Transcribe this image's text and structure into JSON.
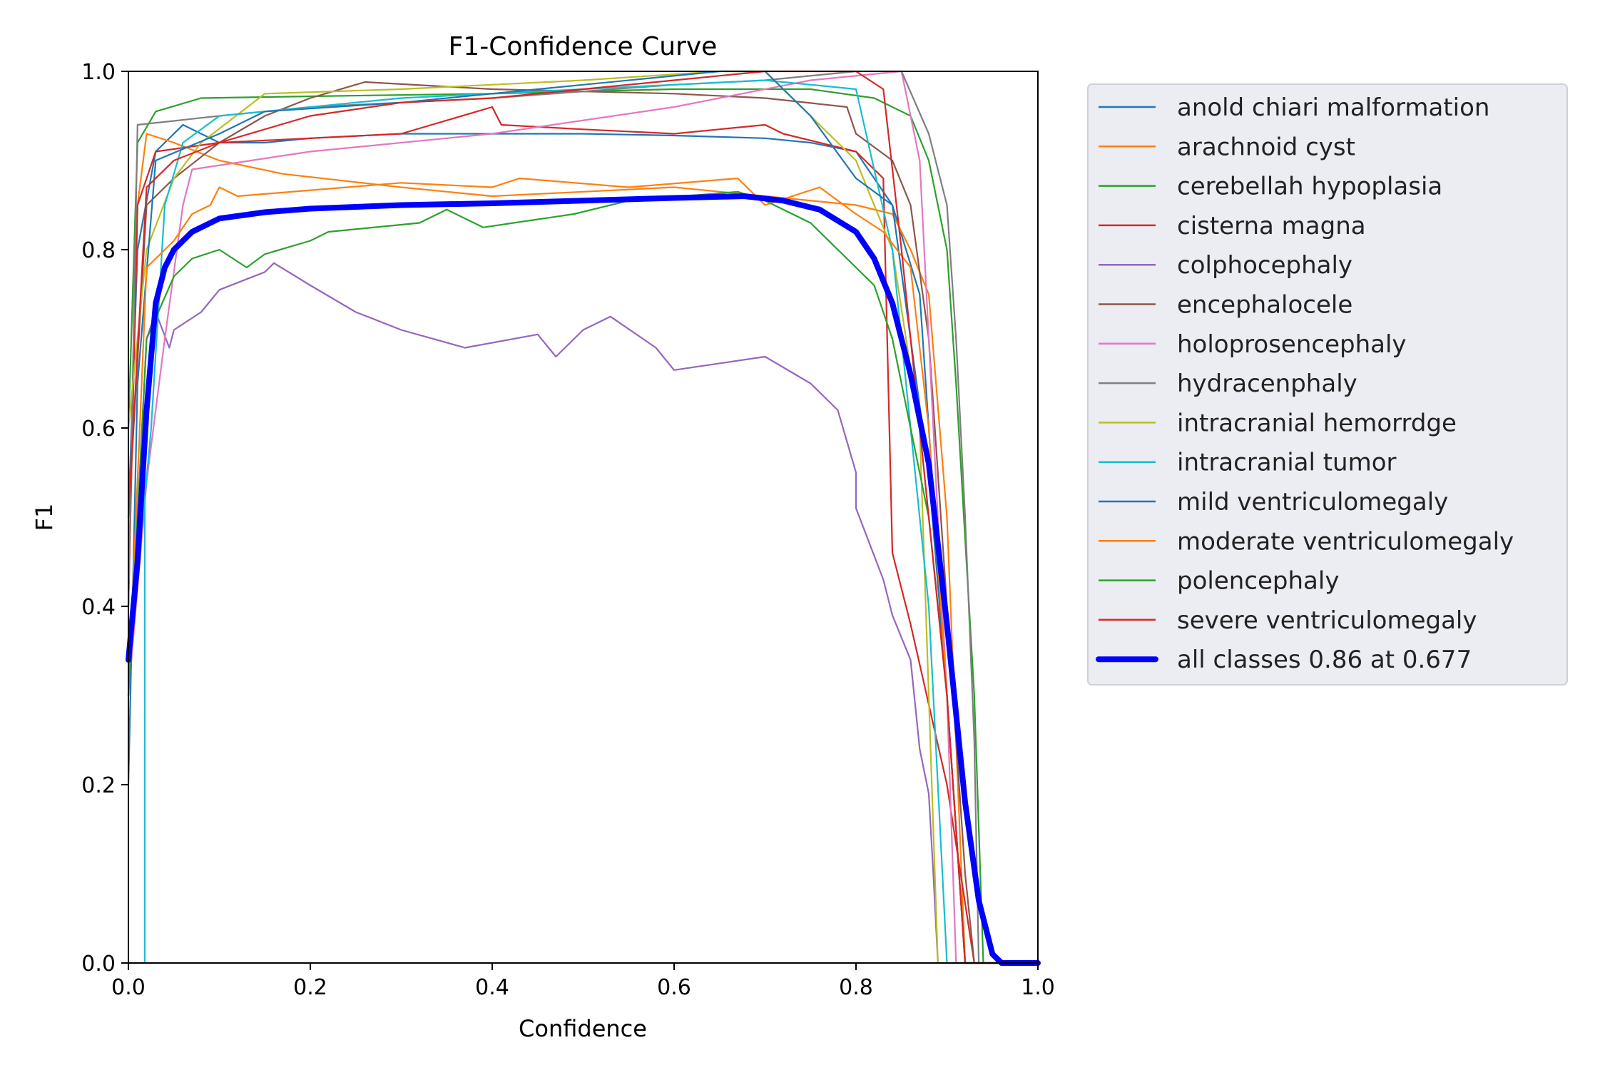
{
  "chart_data": {
    "type": "line",
    "title": "F1-Confidence Curve",
    "xlabel": "Confidence",
    "ylabel": "F1",
    "xlim": [
      0,
      1
    ],
    "ylim": [
      0,
      1
    ],
    "xticks": [
      "0.0",
      "0.2",
      "0.4",
      "0.6",
      "0.8",
      "1.0"
    ],
    "yticks": [
      "0.0",
      "0.2",
      "0.4",
      "0.6",
      "0.8",
      "1.0"
    ],
    "grid": false,
    "legend_position": "outside-right",
    "series": [
      {
        "name": "anold chiari malformation",
        "color": "#1f77b4",
        "width": 1,
        "points": [
          [
            0,
            0.5
          ],
          [
            0.01,
            0.8
          ],
          [
            0.03,
            0.91
          ],
          [
            0.06,
            0.94
          ],
          [
            0.08,
            0.93
          ],
          [
            0.1,
            0.92
          ],
          [
            0.15,
            0.92
          ],
          [
            0.2,
            0.925
          ],
          [
            0.3,
            0.93
          ],
          [
            0.4,
            0.93
          ],
          [
            0.5,
            0.93
          ],
          [
            0.6,
            0.928
          ],
          [
            0.7,
            0.925
          ],
          [
            0.75,
            0.92
          ],
          [
            0.8,
            0.91
          ],
          [
            0.84,
            0.85
          ],
          [
            0.87,
            0.75
          ],
          [
            0.9,
            0.3
          ],
          [
            0.92,
            0
          ],
          [
            1,
            0
          ]
        ]
      },
      {
        "name": "arachnoid cyst",
        "color": "#ff7f0e",
        "width": 1,
        "points": [
          [
            0,
            0.4
          ],
          [
            0.01,
            0.85
          ],
          [
            0.02,
            0.93
          ],
          [
            0.05,
            0.92
          ],
          [
            0.1,
            0.9
          ],
          [
            0.17,
            0.885
          ],
          [
            0.3,
            0.87
          ],
          [
            0.4,
            0.86
          ],
          [
            0.5,
            0.865
          ],
          [
            0.6,
            0.87
          ],
          [
            0.7,
            0.86
          ],
          [
            0.8,
            0.85
          ],
          [
            0.84,
            0.84
          ],
          [
            0.86,
            0.8
          ],
          [
            0.88,
            0.75
          ],
          [
            0.9,
            0.5
          ],
          [
            0.92,
            0
          ],
          [
            1,
            0
          ]
        ]
      },
      {
        "name": "cerebellah hypoplasia",
        "color": "#2ca02c",
        "width": 1,
        "points": [
          [
            0,
            0.6
          ],
          [
            0.01,
            0.92
          ],
          [
            0.03,
            0.955
          ],
          [
            0.08,
            0.97
          ],
          [
            0.2,
            0.972
          ],
          [
            0.4,
            0.975
          ],
          [
            0.6,
            0.98
          ],
          [
            0.75,
            0.98
          ],
          [
            0.82,
            0.97
          ],
          [
            0.86,
            0.95
          ],
          [
            0.88,
            0.9
          ],
          [
            0.9,
            0.8
          ],
          [
            0.91,
            0.65
          ],
          [
            0.93,
            0.3
          ],
          [
            0.94,
            0
          ],
          [
            1,
            0
          ]
        ]
      },
      {
        "name": "cisterna magna",
        "color": "#d62728",
        "width": 1,
        "points": [
          [
            0,
            0.4
          ],
          [
            0.01,
            0.85
          ],
          [
            0.03,
            0.91
          ],
          [
            0.1,
            0.92
          ],
          [
            0.2,
            0.925
          ],
          [
            0.3,
            0.93
          ],
          [
            0.4,
            0.96
          ],
          [
            0.41,
            0.94
          ],
          [
            0.5,
            0.935
          ],
          [
            0.6,
            0.93
          ],
          [
            0.7,
            0.94
          ],
          [
            0.72,
            0.93
          ],
          [
            0.8,
            0.91
          ],
          [
            0.83,
            0.88
          ],
          [
            0.84,
            0.46
          ],
          [
            0.86,
            0.38
          ],
          [
            0.9,
            0.2
          ],
          [
            0.93,
            0
          ],
          [
            1,
            0
          ]
        ]
      },
      {
        "name": "colphocephaly",
        "color": "#9467bd",
        "width": 1,
        "points": [
          [
            0,
            0.3
          ],
          [
            0.02,
            0.7
          ],
          [
            0.03,
            0.73
          ],
          [
            0.045,
            0.69
          ],
          [
            0.05,
            0.71
          ],
          [
            0.08,
            0.73
          ],
          [
            0.1,
            0.755
          ],
          [
            0.15,
            0.775
          ],
          [
            0.16,
            0.785
          ],
          [
            0.2,
            0.76
          ],
          [
            0.25,
            0.73
          ],
          [
            0.3,
            0.71
          ],
          [
            0.37,
            0.69
          ],
          [
            0.45,
            0.705
          ],
          [
            0.47,
            0.68
          ],
          [
            0.5,
            0.71
          ],
          [
            0.53,
            0.725
          ],
          [
            0.58,
            0.69
          ],
          [
            0.6,
            0.665
          ],
          [
            0.7,
            0.68
          ],
          [
            0.75,
            0.65
          ],
          [
            0.78,
            0.62
          ],
          [
            0.8,
            0.55
          ],
          [
            0.8,
            0.51
          ],
          [
            0.83,
            0.43
          ],
          [
            0.84,
            0.39
          ],
          [
            0.86,
            0.34
          ],
          [
            0.87,
            0.24
          ],
          [
            0.88,
            0.19
          ],
          [
            0.885,
            0.1
          ],
          [
            0.89,
            0
          ],
          [
            1,
            0
          ]
        ]
      },
      {
        "name": "encephalocele",
        "color": "#8c564b",
        "width": 1,
        "points": [
          [
            0,
            0.5
          ],
          [
            0.02,
            0.85
          ],
          [
            0.05,
            0.88
          ],
          [
            0.1,
            0.92
          ],
          [
            0.15,
            0.95
          ],
          [
            0.2,
            0.97
          ],
          [
            0.26,
            0.988
          ],
          [
            0.4,
            0.98
          ],
          [
            0.6,
            0.975
          ],
          [
            0.7,
            0.97
          ],
          [
            0.79,
            0.96
          ],
          [
            0.8,
            0.93
          ],
          [
            0.84,
            0.9
          ],
          [
            0.86,
            0.85
          ],
          [
            0.88,
            0.7
          ],
          [
            0.9,
            0.4
          ],
          [
            0.92,
            0.1
          ],
          [
            0.93,
            0
          ],
          [
            1,
            0
          ]
        ]
      },
      {
        "name": "holoprosencephaly",
        "color": "#e377c2",
        "width": 1,
        "points": [
          [
            0,
            0.3
          ],
          [
            0.02,
            0.54
          ],
          [
            0.04,
            0.7
          ],
          [
            0.06,
            0.85
          ],
          [
            0.07,
            0.89
          ],
          [
            0.2,
            0.91
          ],
          [
            0.4,
            0.93
          ],
          [
            0.6,
            0.96
          ],
          [
            0.75,
            0.99
          ],
          [
            0.85,
            1
          ],
          [
            0.87,
            0.9
          ],
          [
            0.88,
            0.7
          ],
          [
            0.9,
            0.3
          ],
          [
            0.91,
            0
          ],
          [
            1,
            0
          ]
        ]
      },
      {
        "name": "hydracenphaly",
        "color": "#7f7f7f",
        "width": 1,
        "points": [
          [
            0,
            0.4
          ],
          [
            0.01,
            0.94
          ],
          [
            0.1,
            0.95
          ],
          [
            0.2,
            0.96
          ],
          [
            0.4,
            0.97
          ],
          [
            0.6,
            0.985
          ],
          [
            0.7,
            0.99
          ],
          [
            0.8,
            1
          ],
          [
            0.85,
            1
          ],
          [
            0.88,
            0.93
          ],
          [
            0.9,
            0.85
          ],
          [
            0.91,
            0.7
          ],
          [
            0.92,
            0.5
          ],
          [
            0.93,
            0.25
          ],
          [
            0.935,
            0
          ],
          [
            1,
            0
          ]
        ]
      },
      {
        "name": "intracranial hemorrdge",
        "color": "#bcbd22",
        "width": 1,
        "points": [
          [
            0,
            0.6
          ],
          [
            0.02,
            0.8
          ],
          [
            0.05,
            0.88
          ],
          [
            0.08,
            0.92
          ],
          [
            0.15,
            0.975
          ],
          [
            0.3,
            0.98
          ],
          [
            0.5,
            0.99
          ],
          [
            0.65,
            1
          ],
          [
            0.7,
            1
          ],
          [
            0.8,
            0.9
          ],
          [
            0.84,
            0.8
          ],
          [
            0.87,
            0.6
          ],
          [
            0.88,
            0.3
          ],
          [
            0.89,
            0
          ],
          [
            1,
            0
          ]
        ]
      },
      {
        "name": "intracranial tumor",
        "color": "#17becf",
        "width": 1,
        "points": [
          [
            0,
            0
          ],
          [
            0.018,
            0
          ],
          [
            0.018,
            0.52
          ],
          [
            0.025,
            0.6
          ],
          [
            0.04,
            0.85
          ],
          [
            0.06,
            0.92
          ],
          [
            0.1,
            0.95
          ],
          [
            0.3,
            0.97
          ],
          [
            0.5,
            0.98
          ],
          [
            0.7,
            0.99
          ],
          [
            0.8,
            0.98
          ],
          [
            0.84,
            0.8
          ],
          [
            0.88,
            0.4
          ],
          [
            0.9,
            0
          ],
          [
            1,
            0
          ]
        ]
      },
      {
        "name": "mild ventriculomegaly",
        "color": "#1f77b4",
        "width": 1,
        "points": [
          [
            0,
            0.2
          ],
          [
            0.01,
            0.65
          ],
          [
            0.03,
            0.9
          ],
          [
            0.1,
            0.93
          ],
          [
            0.15,
            0.955
          ],
          [
            0.3,
            0.965
          ],
          [
            0.5,
            0.985
          ],
          [
            0.65,
            1
          ],
          [
            0.7,
            1
          ],
          [
            0.75,
            0.95
          ],
          [
            0.8,
            0.88
          ],
          [
            0.84,
            0.85
          ],
          [
            0.86,
            0.7
          ],
          [
            0.88,
            0.55
          ],
          [
            0.9,
            0.3
          ],
          [
            0.92,
            0
          ],
          [
            1,
            0
          ]
        ]
      },
      {
        "name": "moderate ventriculomegaly",
        "color": "#ff7f0e",
        "width": 1,
        "points": [
          [
            0,
            0.3
          ],
          [
            0.02,
            0.78
          ],
          [
            0.05,
            0.81
          ],
          [
            0.07,
            0.84
          ],
          [
            0.09,
            0.85
          ],
          [
            0.1,
            0.87
          ],
          [
            0.12,
            0.86
          ],
          [
            0.3,
            0.875
          ],
          [
            0.4,
            0.87
          ],
          [
            0.43,
            0.88
          ],
          [
            0.55,
            0.87
          ],
          [
            0.67,
            0.88
          ],
          [
            0.7,
            0.85
          ],
          [
            0.76,
            0.87
          ],
          [
            0.8,
            0.84
          ],
          [
            0.83,
            0.82
          ],
          [
            0.86,
            0.78
          ],
          [
            0.88,
            0.6
          ],
          [
            0.9,
            0.3
          ],
          [
            0.92,
            0
          ],
          [
            1,
            0
          ]
        ]
      },
      {
        "name": "polencephaly",
        "color": "#2ca02c",
        "width": 1,
        "points": [
          [
            0,
            0.3
          ],
          [
            0.02,
            0.7
          ],
          [
            0.05,
            0.77
          ],
          [
            0.07,
            0.79
          ],
          [
            0.1,
            0.8
          ],
          [
            0.13,
            0.78
          ],
          [
            0.15,
            0.795
          ],
          [
            0.2,
            0.81
          ],
          [
            0.22,
            0.82
          ],
          [
            0.32,
            0.83
          ],
          [
            0.35,
            0.845
          ],
          [
            0.39,
            0.825
          ],
          [
            0.49,
            0.84
          ],
          [
            0.55,
            0.855
          ],
          [
            0.67,
            0.865
          ],
          [
            0.7,
            0.855
          ],
          [
            0.75,
            0.83
          ],
          [
            0.8,
            0.78
          ],
          [
            0.82,
            0.76
          ],
          [
            0.84,
            0.7
          ],
          [
            0.86,
            0.6
          ],
          [
            0.88,
            0.5
          ],
          [
            0.9,
            0.3
          ],
          [
            0.92,
            0
          ],
          [
            1,
            0
          ]
        ]
      },
      {
        "name": "severe ventriculomegaly",
        "color": "#d62728",
        "width": 1,
        "points": [
          [
            0,
            0.5
          ],
          [
            0.02,
            0.87
          ],
          [
            0.05,
            0.9
          ],
          [
            0.1,
            0.92
          ],
          [
            0.2,
            0.95
          ],
          [
            0.3,
            0.965
          ],
          [
            0.4,
            0.97
          ],
          [
            0.5,
            0.98
          ],
          [
            0.6,
            0.99
          ],
          [
            0.7,
            1
          ],
          [
            0.8,
            1
          ],
          [
            0.83,
            0.98
          ],
          [
            0.85,
            0.8
          ],
          [
            0.87,
            0.6
          ],
          [
            0.9,
            0.3
          ],
          [
            0.92,
            0
          ],
          [
            1,
            0
          ]
        ]
      },
      {
        "name": "all classes 0.86 at 0.677",
        "color": "#0000ff",
        "width": 3,
        "points": [
          [
            0,
            0.34
          ],
          [
            0.01,
            0.45
          ],
          [
            0.02,
            0.62
          ],
          [
            0.03,
            0.74
          ],
          [
            0.04,
            0.78
          ],
          [
            0.05,
            0.8
          ],
          [
            0.07,
            0.82
          ],
          [
            0.1,
            0.835
          ],
          [
            0.15,
            0.842
          ],
          [
            0.2,
            0.846
          ],
          [
            0.3,
            0.85
          ],
          [
            0.4,
            0.852
          ],
          [
            0.5,
            0.855
          ],
          [
            0.6,
            0.858
          ],
          [
            0.677,
            0.86
          ],
          [
            0.72,
            0.855
          ],
          [
            0.76,
            0.845
          ],
          [
            0.8,
            0.82
          ],
          [
            0.82,
            0.79
          ],
          [
            0.84,
            0.74
          ],
          [
            0.86,
            0.66
          ],
          [
            0.88,
            0.56
          ],
          [
            0.9,
            0.38
          ],
          [
            0.92,
            0.18
          ],
          [
            0.935,
            0.07
          ],
          [
            0.95,
            0.01
          ],
          [
            0.96,
            0
          ],
          [
            1,
            0
          ]
        ]
      }
    ]
  }
}
